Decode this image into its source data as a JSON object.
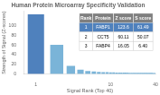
{
  "chart_data": {
    "type": "bar",
    "title": "Human Protein Microarray Specificity Validation",
    "xlabel": "Signal Rank (Top 40)",
    "ylabel": "Strength of Signal (Z-scores)",
    "x": [
      1,
      2,
      3,
      4,
      5,
      6,
      7,
      8,
      9,
      10,
      11,
      12,
      13,
      14,
      15,
      16,
      17,
      18,
      19,
      20,
      21,
      22,
      23,
      24,
      25,
      26,
      27,
      28,
      29,
      30,
      31,
      32,
      33,
      34,
      35,
      36,
      37,
      38,
      39,
      40
    ],
    "values": [
      123.6,
      60.11,
      16.05,
      8.0,
      5.5,
      4.2,
      3.5,
      3.0,
      2.8,
      2.5,
      2.3,
      2.2,
      2.1,
      2.0,
      1.9,
      1.85,
      1.8,
      1.75,
      1.7,
      1.65,
      1.6,
      1.58,
      1.56,
      1.54,
      1.52,
      1.5,
      1.48,
      1.46,
      1.44,
      1.42,
      1.4,
      1.38,
      1.36,
      1.34,
      1.32,
      1.3,
      1.28,
      1.26,
      1.24,
      1.22
    ],
    "colors": [
      "#4f81bd",
      "#7ab4d8",
      "#7ab4d8",
      "#7ab4d8",
      "#7ab4d8",
      "#7ab4d8",
      "#7ab4d8",
      "#7ab4d8",
      "#7ab4d8",
      "#7ab4d8",
      "#7ab4d8",
      "#7ab4d8",
      "#7ab4d8",
      "#7ab4d8",
      "#7ab4d8",
      "#7ab4d8",
      "#7ab4d8",
      "#7ab4d8",
      "#7ab4d8",
      "#7ab4d8",
      "#7ab4d8",
      "#7ab4d8",
      "#7ab4d8",
      "#7ab4d8",
      "#7ab4d8",
      "#7ab4d8",
      "#7ab4d8",
      "#7ab4d8",
      "#7ab4d8",
      "#7ab4d8",
      "#7ab4d8",
      "#7ab4d8",
      "#7ab4d8",
      "#7ab4d8",
      "#7ab4d8",
      "#7ab4d8",
      "#7ab4d8",
      "#7ab4d8",
      "#7ab4d8",
      "#7ab4d8"
    ],
    "log": "x",
    "xlim": [
      0.7,
      40
    ],
    "xticks": [
      1,
      10,
      40
    ],
    "ylim": [
      0,
      130
    ],
    "yticks": [
      0,
      20,
      40,
      60,
      80,
      100
    ],
    "grid": false,
    "table": {
      "headers": [
        "Rank",
        "Protein",
        "Z score",
        "S score"
      ],
      "rows": [
        [
          "1",
          "FABP1",
          "123.6",
          "61.49"
        ],
        [
          "2",
          "CCT5",
          "60.11",
          "50.07"
        ],
        [
          "3",
          "FABP4",
          "16.05",
          "6.40"
        ]
      ],
      "header_color": "#7f7f7f",
      "row_colors": [
        "#4f81bd",
        "#ffffff",
        "#ffffff"
      ]
    }
  }
}
